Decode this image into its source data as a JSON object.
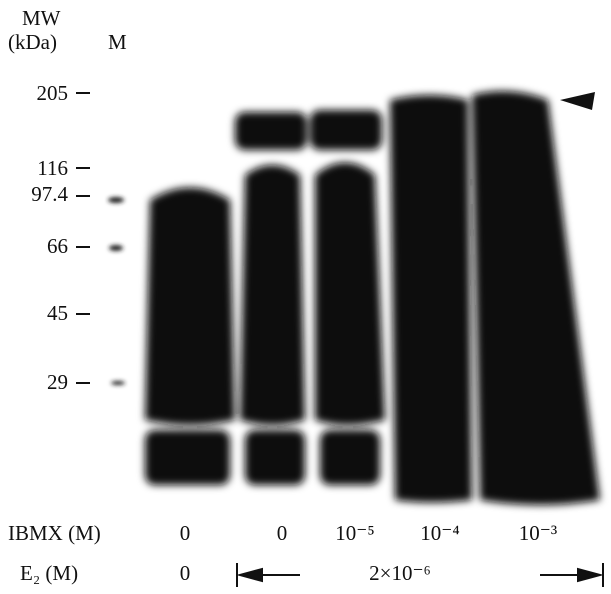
{
  "header": {
    "mw": "MW",
    "unit": "(kDa)",
    "marker_lane": "M"
  },
  "markers": [
    "205",
    "116",
    "97.4",
    "66",
    "45",
    "29"
  ],
  "ibmx": {
    "label": "IBMX (M)",
    "values": [
      "0",
      "0",
      "10⁻⁵",
      "10⁻⁴",
      "10⁻³"
    ]
  },
  "e2": {
    "label": "E₂ (M)",
    "values": [
      "0",
      "2×10⁻⁶"
    ]
  }
}
